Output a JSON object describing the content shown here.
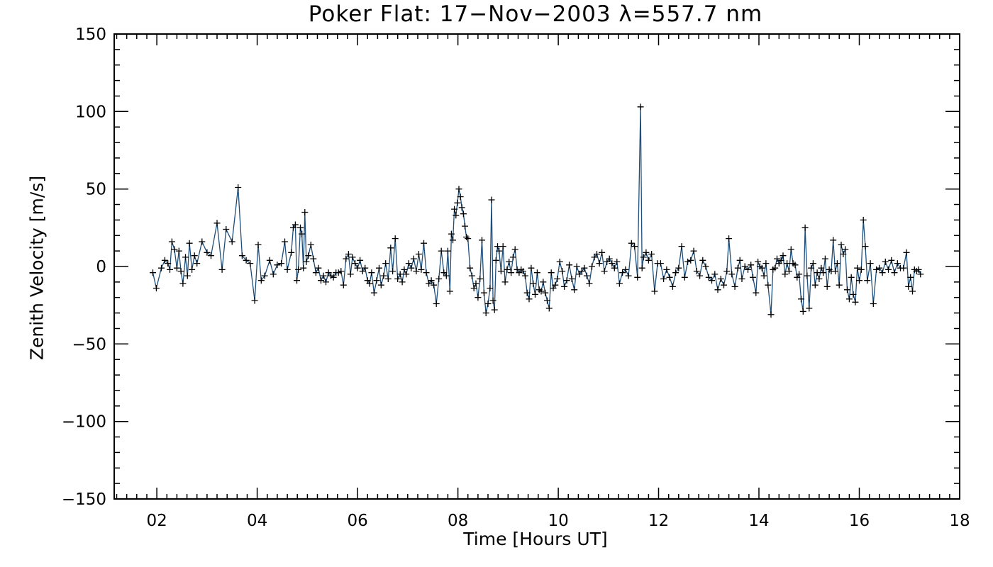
{
  "chart_data": {
    "type": "line",
    "title": "Poker Flat: 17−Nov−2003 λ=557.7 nm",
    "xlabel": "Time [Hours UT]",
    "ylabel": "Zenith Velocity [m/s]",
    "xlim": [
      1.15,
      18
    ],
    "ylim": [
      -150,
      150
    ],
    "x_ticks": [
      2,
      4,
      6,
      8,
      10,
      12,
      14,
      16,
      18
    ],
    "x_tick_labels": [
      "02",
      "04",
      "06",
      "08",
      "10",
      "12",
      "14",
      "16",
      "18"
    ],
    "y_ticks": [
      -150,
      -100,
      -50,
      0,
      50,
      100,
      150
    ],
    "y_tick_labels": [
      "−150",
      "−100",
      "−50",
      "0",
      "50",
      "100",
      "150"
    ],
    "grid": false,
    "line_color": "#1f4e79",
    "marker": "plus",
    "series": [
      {
        "name": "Zenith Velocity",
        "points": [
          [
            1.92,
            -4
          ],
          [
            1.99,
            -14
          ],
          [
            2.09,
            -1
          ],
          [
            2.16,
            4
          ],
          [
            2.22,
            2
          ],
          [
            2.26,
            -2
          ],
          [
            2.3,
            16
          ],
          [
            2.35,
            11
          ],
          [
            2.4,
            -1
          ],
          [
            2.44,
            10
          ],
          [
            2.48,
            -3
          ],
          [
            2.52,
            -11
          ],
          [
            2.57,
            6
          ],
          [
            2.61,
            -6
          ],
          [
            2.65,
            15
          ],
          [
            2.7,
            -2
          ],
          [
            2.75,
            7
          ],
          [
            2.8,
            2
          ],
          [
            2.9,
            16
          ],
          [
            3.0,
            9
          ],
          [
            3.08,
            7
          ],
          [
            3.2,
            28
          ],
          [
            3.3,
            -2
          ],
          [
            3.38,
            24
          ],
          [
            3.5,
            16
          ],
          [
            3.62,
            51
          ],
          [
            3.7,
            7
          ],
          [
            3.78,
            4
          ],
          [
            3.86,
            2
          ],
          [
            3.95,
            -22
          ],
          [
            4.02,
            14
          ],
          [
            4.08,
            -9
          ],
          [
            4.15,
            -6
          ],
          [
            4.25,
            4
          ],
          [
            4.32,
            -5
          ],
          [
            4.4,
            1
          ],
          [
            4.48,
            2
          ],
          [
            4.55,
            16
          ],
          [
            4.6,
            -2
          ],
          [
            4.68,
            9
          ],
          [
            4.72,
            25
          ],
          [
            4.76,
            27
          ],
          [
            4.79,
            -9
          ],
          [
            4.82,
            -2
          ],
          [
            4.86,
            25
          ],
          [
            4.89,
            21
          ],
          [
            4.92,
            -1
          ],
          [
            4.95,
            35
          ],
          [
            4.98,
            3
          ],
          [
            5.02,
            7
          ],
          [
            5.07,
            14
          ],
          [
            5.12,
            5
          ],
          [
            5.17,
            -4
          ],
          [
            5.22,
            -1
          ],
          [
            5.27,
            -9
          ],
          [
            5.32,
            -6
          ],
          [
            5.37,
            -10
          ],
          [
            5.42,
            -4
          ],
          [
            5.47,
            -6
          ],
          [
            5.52,
            -7
          ],
          [
            5.57,
            -4
          ],
          [
            5.62,
            -4
          ],
          [
            5.67,
            -3
          ],
          [
            5.72,
            -12
          ],
          [
            5.77,
            5
          ],
          [
            5.82,
            8
          ],
          [
            5.86,
            -5
          ],
          [
            5.9,
            6
          ],
          [
            5.95,
            2
          ],
          [
            6.0,
            -1
          ],
          [
            6.05,
            4
          ],
          [
            6.1,
            -3
          ],
          [
            6.15,
            -1
          ],
          [
            6.2,
            -9
          ],
          [
            6.24,
            -11
          ],
          [
            6.28,
            -4
          ],
          [
            6.33,
            -17
          ],
          [
            6.38,
            -9
          ],
          [
            6.43,
            -1
          ],
          [
            6.47,
            -12
          ],
          [
            6.52,
            -6
          ],
          [
            6.56,
            2
          ],
          [
            6.61,
            -8
          ],
          [
            6.66,
            12
          ],
          [
            6.7,
            -3
          ],
          [
            6.75,
            18
          ],
          [
            6.8,
            -8
          ],
          [
            6.85,
            -5
          ],
          [
            6.89,
            -10
          ],
          [
            6.93,
            -2
          ],
          [
            6.97,
            -5
          ],
          [
            7.02,
            2
          ],
          [
            7.07,
            -1
          ],
          [
            7.12,
            5
          ],
          [
            7.17,
            -3
          ],
          [
            7.22,
            8
          ],
          [
            7.27,
            -2
          ],
          [
            7.32,
            15
          ],
          [
            7.37,
            -4
          ],
          [
            7.42,
            -11
          ],
          [
            7.47,
            -9
          ],
          [
            7.52,
            -12
          ],
          [
            7.57,
            -24
          ],
          [
            7.62,
            -8
          ],
          [
            7.67,
            10
          ],
          [
            7.72,
            -4
          ],
          [
            7.77,
            -6
          ],
          [
            7.8,
            10
          ],
          [
            7.84,
            -16
          ],
          [
            7.87,
            21
          ],
          [
            7.9,
            17
          ],
          [
            7.93,
            37
          ],
          [
            7.96,
            33
          ],
          [
            7.99,
            41
          ],
          [
            8.02,
            50
          ],
          [
            8.05,
            45
          ],
          [
            8.08,
            38
          ],
          [
            8.11,
            34
          ],
          [
            8.14,
            26
          ],
          [
            8.17,
            19
          ],
          [
            8.2,
            18
          ],
          [
            8.24,
            -1
          ],
          [
            8.28,
            -6
          ],
          [
            8.32,
            -14
          ],
          [
            8.36,
            -11
          ],
          [
            8.4,
            -20
          ],
          [
            8.44,
            -8
          ],
          [
            8.48,
            17
          ],
          [
            8.52,
            -17
          ],
          [
            8.56,
            -30
          ],
          [
            8.6,
            -24
          ],
          [
            8.64,
            -14
          ],
          [
            8.67,
            43
          ],
          [
            8.7,
            -22
          ],
          [
            8.73,
            -28
          ],
          [
            8.76,
            4
          ],
          [
            8.79,
            13
          ],
          [
            8.82,
            10
          ],
          [
            8.86,
            -3
          ],
          [
            8.9,
            13
          ],
          [
            8.94,
            -10
          ],
          [
            8.98,
            -2
          ],
          [
            9.02,
            3
          ],
          [
            9.06,
            -4
          ],
          [
            9.1,
            6
          ],
          [
            9.14,
            11
          ],
          [
            9.18,
            -2
          ],
          [
            9.22,
            -4
          ],
          [
            9.26,
            -2
          ],
          [
            9.3,
            -3
          ],
          [
            9.34,
            -6
          ],
          [
            9.38,
            -17
          ],
          [
            9.42,
            -21
          ],
          [
            9.46,
            -1
          ],
          [
            9.5,
            -11
          ],
          [
            9.54,
            -18
          ],
          [
            9.58,
            -4
          ],
          [
            9.62,
            -15
          ],
          [
            9.66,
            -16
          ],
          [
            9.7,
            -10
          ],
          [
            9.74,
            -17
          ],
          [
            9.78,
            -22
          ],
          [
            9.82,
            -27
          ],
          [
            9.86,
            -4
          ],
          [
            9.9,
            -14
          ],
          [
            9.94,
            -12
          ],
          [
            9.98,
            -8
          ],
          [
            10.03,
            3
          ],
          [
            10.08,
            -3
          ],
          [
            10.12,
            -13
          ],
          [
            10.17,
            -9
          ],
          [
            10.22,
            1
          ],
          [
            10.27,
            -8
          ],
          [
            10.32,
            -15
          ],
          [
            10.37,
            0
          ],
          [
            10.42,
            -5
          ],
          [
            10.47,
            -3
          ],
          [
            10.52,
            -1
          ],
          [
            10.57,
            -6
          ],
          [
            10.62,
            -11
          ],
          [
            10.67,
            0
          ],
          [
            10.72,
            6
          ],
          [
            10.77,
            8
          ],
          [
            10.82,
            2
          ],
          [
            10.87,
            9
          ],
          [
            10.92,
            -3
          ],
          [
            10.97,
            3
          ],
          [
            11.02,
            5
          ],
          [
            11.07,
            2
          ],
          [
            11.12,
            -1
          ],
          [
            11.17,
            3
          ],
          [
            11.22,
            -11
          ],
          [
            11.28,
            -4
          ],
          [
            11.34,
            -2
          ],
          [
            11.4,
            -6
          ],
          [
            11.46,
            15
          ],
          [
            11.52,
            13
          ],
          [
            11.58,
            -7
          ],
          [
            11.64,
            103
          ],
          [
            11.67,
            -1
          ],
          [
            11.7,
            6
          ],
          [
            11.75,
            9
          ],
          [
            11.8,
            4
          ],
          [
            11.86,
            8
          ],
          [
            11.92,
            -16
          ],
          [
            11.98,
            2
          ],
          [
            12.04,
            2
          ],
          [
            12.1,
            -8
          ],
          [
            12.16,
            -2
          ],
          [
            12.22,
            -7
          ],
          [
            12.28,
            -13
          ],
          [
            12.34,
            -4
          ],
          [
            12.4,
            -1
          ],
          [
            12.46,
            13
          ],
          [
            12.52,
            -7
          ],
          [
            12.58,
            3
          ],
          [
            12.64,
            4
          ],
          [
            12.7,
            10
          ],
          [
            12.76,
            -3
          ],
          [
            12.82,
            -6
          ],
          [
            12.88,
            4
          ],
          [
            12.94,
            0
          ],
          [
            13.0,
            -7
          ],
          [
            13.06,
            -9
          ],
          [
            13.12,
            -5
          ],
          [
            13.18,
            -15
          ],
          [
            13.24,
            -8
          ],
          [
            13.3,
            -12
          ],
          [
            13.36,
            -3
          ],
          [
            13.4,
            18
          ],
          [
            13.46,
            -5
          ],
          [
            13.52,
            -13
          ],
          [
            13.58,
            -1
          ],
          [
            13.62,
            4
          ],
          [
            13.66,
            -8
          ],
          [
            13.72,
            0
          ],
          [
            13.78,
            -2
          ],
          [
            13.84,
            1
          ],
          [
            13.88,
            -7
          ],
          [
            13.94,
            -17
          ],
          [
            13.98,
            3
          ],
          [
            14.02,
            0
          ],
          [
            14.06,
            -1
          ],
          [
            14.1,
            -6
          ],
          [
            14.14,
            2
          ],
          [
            14.18,
            -12
          ],
          [
            14.24,
            -31
          ],
          [
            14.28,
            -2
          ],
          [
            14.32,
            -1
          ],
          [
            14.36,
            5
          ],
          [
            14.4,
            2
          ],
          [
            14.44,
            4
          ],
          [
            14.48,
            7
          ],
          [
            14.52,
            -5
          ],
          [
            14.56,
            2
          ],
          [
            14.6,
            -3
          ],
          [
            14.64,
            11
          ],
          [
            14.68,
            2
          ],
          [
            14.72,
            1
          ],
          [
            14.76,
            -7
          ],
          [
            14.8,
            -5
          ],
          [
            14.84,
            -21
          ],
          [
            14.88,
            -29
          ],
          [
            14.92,
            25
          ],
          [
            14.96,
            -6
          ],
          [
            15.0,
            -27
          ],
          [
            15.04,
            -1
          ],
          [
            15.08,
            2
          ],
          [
            15.12,
            -12
          ],
          [
            15.16,
            -4
          ],
          [
            15.2,
            -8
          ],
          [
            15.24,
            -1
          ],
          [
            15.28,
            -4
          ],
          [
            15.32,
            5
          ],
          [
            15.36,
            -13
          ],
          [
            15.4,
            -2
          ],
          [
            15.44,
            -3
          ],
          [
            15.48,
            17
          ],
          [
            15.52,
            -3
          ],
          [
            15.56,
            2
          ],
          [
            15.6,
            -12
          ],
          [
            15.64,
            14
          ],
          [
            15.68,
            8
          ],
          [
            15.72,
            11
          ],
          [
            15.76,
            -15
          ],
          [
            15.8,
            -21
          ],
          [
            15.84,
            -7
          ],
          [
            15.88,
            -18
          ],
          [
            15.92,
            -23
          ],
          [
            15.96,
            -1
          ],
          [
            16.0,
            -9
          ],
          [
            16.04,
            -2
          ],
          [
            16.08,
            30
          ],
          [
            16.12,
            13
          ],
          [
            16.16,
            -9
          ],
          [
            16.22,
            2
          ],
          [
            16.28,
            -24
          ],
          [
            16.34,
            -2
          ],
          [
            16.4,
            -1
          ],
          [
            16.46,
            -4
          ],
          [
            16.52,
            3
          ],
          [
            16.58,
            -2
          ],
          [
            16.64,
            4
          ],
          [
            16.7,
            -4
          ],
          [
            16.76,
            2
          ],
          [
            16.82,
            -1
          ],
          [
            16.88,
            -1
          ],
          [
            16.94,
            9
          ],
          [
            16.98,
            -13
          ],
          [
            17.02,
            -7
          ],
          [
            17.06,
            -16
          ],
          [
            17.1,
            -2
          ],
          [
            17.14,
            -3
          ],
          [
            17.18,
            -2
          ],
          [
            17.22,
            -5
          ]
        ]
      }
    ]
  }
}
